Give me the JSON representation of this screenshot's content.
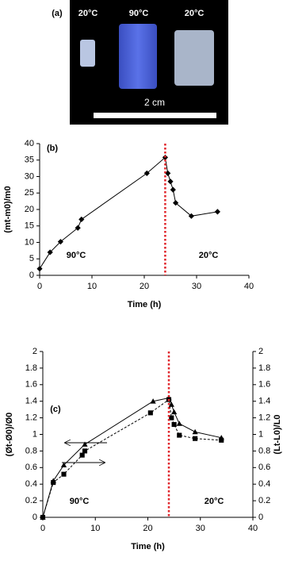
{
  "photo": {
    "label": "(a)",
    "temps": [
      "20°C",
      "90°C",
      "20°C"
    ],
    "scale": "2 cm"
  },
  "chart_data": [
    {
      "type": "line",
      "panel": "(b)",
      "x_label": "Time (h)",
      "y_label": "(mt-m0)/m0",
      "xlim": [
        0,
        40
      ],
      "xticks": [
        0,
        10,
        20,
        30,
        40
      ],
      "ylim": [
        0,
        40
      ],
      "yticks": [
        0,
        5,
        10,
        15,
        20,
        25,
        30,
        35,
        40
      ],
      "vline_x": 24,
      "vline_color": "#e0242a",
      "annotations": [
        "90°C",
        "20°C"
      ],
      "series": [
        {
          "color": "#000000",
          "marker": "diamond",
          "dash": false,
          "x": [
            0,
            2,
            4,
            7.3,
            8,
            20.5,
            24,
            24.5,
            25,
            25.5,
            26,
            29,
            34
          ],
          "values": [
            2,
            7,
            10.2,
            14.4,
            17,
            31,
            35.8,
            31,
            28.5,
            26,
            22,
            18,
            19.3
          ]
        }
      ]
    },
    {
      "type": "line",
      "panel": "(c)",
      "x_label": "Time (h)",
      "y_label": "(Øt-Ø0)/Ø0",
      "y2_label": "(Lt-L0)/L0",
      "xlim": [
        0,
        40
      ],
      "xticks": [
        0,
        10,
        20,
        30,
        40
      ],
      "ylim": [
        0,
        2
      ],
      "yticks": [
        0,
        0.2,
        0.4,
        0.6,
        0.8,
        1,
        1.2,
        1.4,
        1.6,
        1.8,
        2
      ],
      "y2lim": [
        0,
        2
      ],
      "y2ticks": [
        0,
        0.2,
        0.4,
        0.6,
        0.8,
        1,
        1.2,
        1.4,
        1.6,
        1.8,
        2
      ],
      "vline_x": 24,
      "vline_color": "#e0242a",
      "annotations": [
        "90°C",
        "20°C"
      ],
      "series": [
        {
          "color": "#000000",
          "marker": "triangle",
          "dash": false,
          "x": [
            0,
            2,
            4,
            8,
            21,
            24,
            24.5,
            25,
            26,
            29,
            34
          ],
          "values": [
            0,
            0.44,
            0.63,
            0.88,
            1.4,
            1.44,
            1.36,
            1.27,
            1.13,
            1.03,
            0.96
          ]
        },
        {
          "color": "#000000",
          "marker": "square",
          "dash": true,
          "axis": "y2",
          "x": [
            0,
            2,
            4,
            7.5,
            8,
            20.5,
            24,
            24.5,
            25,
            26,
            29,
            34
          ],
          "values": [
            0,
            0.42,
            0.52,
            0.75,
            0.8,
            1.26,
            1.42,
            1.2,
            1.12,
            0.99,
            0.95,
            0.93
          ]
        }
      ]
    }
  ]
}
